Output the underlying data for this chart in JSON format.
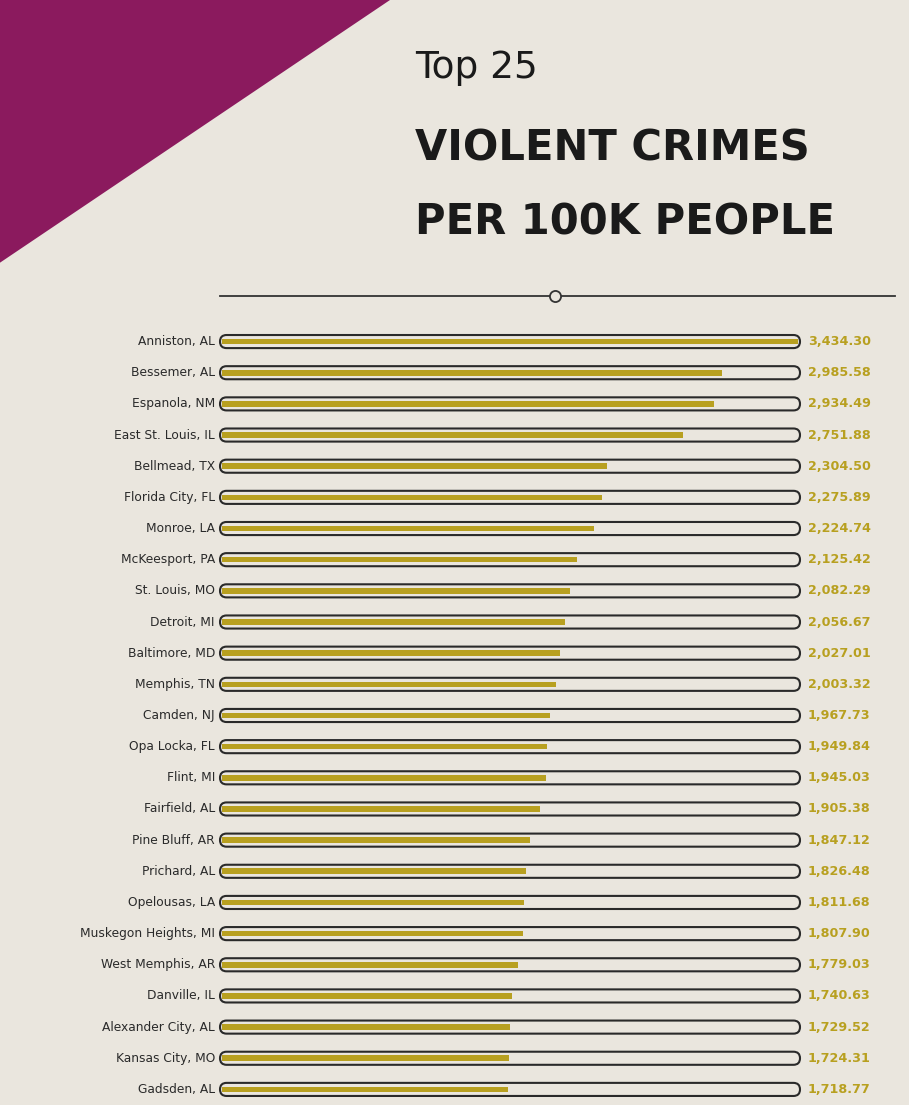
{
  "title_top": "Top 25",
  "title_main_line1": "VIOLENT CRIMES",
  "title_main_line2": "PER 100K PEOPLE",
  "background_color": "#eae6de",
  "bar_fill_color": "#b8a020",
  "bar_container_edge": "#2a2a2a",
  "bar_container_fill": "#eae6de",
  "value_color": "#b8a020",
  "label_color": "#2a2a2a",
  "categories": [
    "Anniston, AL",
    "Bessemer, AL",
    "Espanola, NM",
    "East St. Louis, IL",
    "Bellmead, TX",
    "Florida City, FL",
    "Monroe, LA",
    "McKeesport, PA",
    "St. Louis, MO",
    "Detroit, MI",
    "Baltimore, MD",
    "Memphis, TN",
    "Camden, NJ",
    "Opa Locka, FL",
    "Flint, MI",
    "Fairfield, AL",
    "Pine Bluff, AR",
    "Prichard, AL",
    "Opelousas, LA",
    "Muskegon Heights, MI",
    "West Memphis, AR",
    "Danville, IL",
    "Alexander City, AL",
    "Kansas City, MO",
    "Gadsden, AL"
  ],
  "values": [
    3434.3,
    2985.58,
    2934.49,
    2751.88,
    2304.5,
    2275.89,
    2224.74,
    2125.42,
    2082.29,
    2056.67,
    2027.01,
    2003.32,
    1967.73,
    1949.84,
    1945.03,
    1905.38,
    1847.12,
    1826.48,
    1811.68,
    1807.9,
    1779.03,
    1740.63,
    1729.52,
    1724.31,
    1718.77
  ],
  "max_value": 3434.3,
  "header_bg_color": "#8b1a5e",
  "title_color": "#1a1a1a",
  "title_top_color": "#1a1a1a",
  "divider_color": "#333333"
}
